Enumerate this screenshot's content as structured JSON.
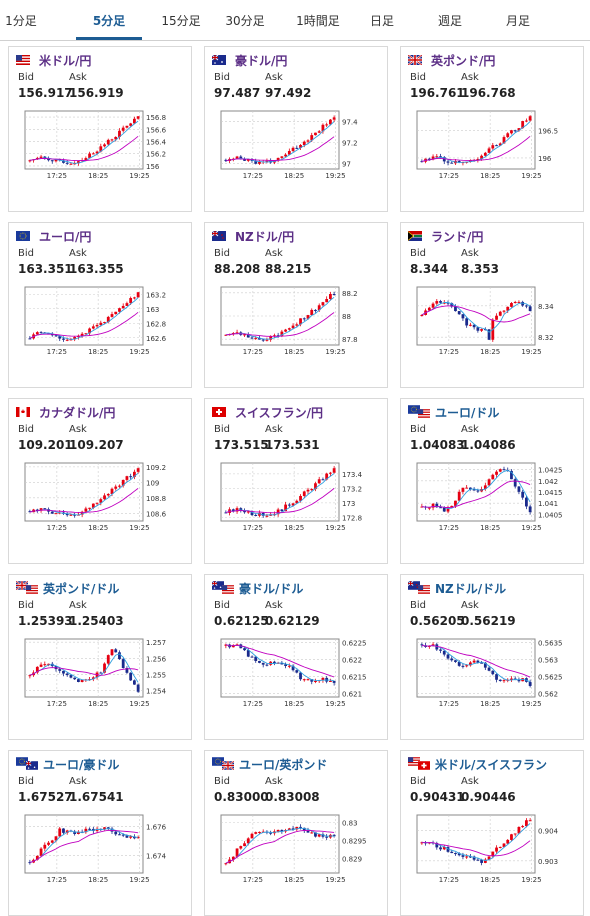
{
  "tabs": [
    {
      "label": "1分足",
      "active": false
    },
    {
      "label": "5分足",
      "active": true
    },
    {
      "label": "15分足",
      "active": false
    },
    {
      "label": "30分足",
      "active": false
    },
    {
      "label": "1時間足",
      "active": false
    },
    {
      "label": "日足",
      "active": false
    },
    {
      "label": "週足",
      "active": false
    },
    {
      "label": "月足",
      "active": false
    }
  ],
  "labels": {
    "bid": "Bid",
    "ask": "Ask"
  },
  "colors": {
    "up": "#e60012",
    "down": "#1a2a8c",
    "ma_fast": "#30a0e0",
    "ma_slow": "#c000c0",
    "title_purple": "#5c2f86",
    "title_blue": "#1d5c93"
  },
  "cards": [
    {
      "title": "米ドル/円",
      "flag": "us",
      "bid": "156.917",
      "ask": "156.919",
      "chart": {
        "type": "candlestick",
        "x_ticks": [
          "17:25",
          "18:25",
          "19:25"
        ],
        "y_ticks": [
          "156",
          "156.2",
          "156.4",
          "156.6",
          "156.8"
        ],
        "ylim": [
          155.95,
          156.9
        ],
        "trend": "up-late"
      }
    },
    {
      "title": "豪ドル/円",
      "flag": "au",
      "bid": "97.487",
      "ask": "97.492",
      "chart": {
        "type": "candlestick",
        "x_ticks": [
          "17:25",
          "18:25",
          "19:25"
        ],
        "y_ticks": [
          "97",
          "97.2",
          "97.4"
        ],
        "ylim": [
          96.95,
          97.5
        ],
        "trend": "up-late"
      }
    },
    {
      "title": "英ポンド/円",
      "flag": "gb",
      "bid": "196.761",
      "ask": "196.768",
      "chart": {
        "type": "candlestick",
        "x_ticks": [
          "17:25",
          "18:25",
          "19:25"
        ],
        "y_ticks": [
          "196",
          "196.5"
        ],
        "ylim": [
          195.8,
          196.85
        ],
        "trend": "up-late"
      }
    },
    {
      "title": "ユーロ/円",
      "flag": "eu",
      "bid": "163.351",
      "ask": "163.355",
      "chart": {
        "type": "candlestick",
        "x_ticks": [
          "17:25",
          "18:25",
          "19:25"
        ],
        "y_ticks": [
          "162.6",
          "162.8",
          "163",
          "163.2"
        ],
        "ylim": [
          162.5,
          163.3
        ],
        "trend": "up-late"
      }
    },
    {
      "title": "NZドル/円",
      "flag": "nz",
      "bid": "88.208",
      "ask": "88.215",
      "chart": {
        "type": "candlestick",
        "x_ticks": [
          "17:25",
          "18:25",
          "19:25"
        ],
        "y_ticks": [
          "87.8",
          "88",
          "88.2"
        ],
        "ylim": [
          87.75,
          88.25
        ],
        "trend": "up-late"
      }
    },
    {
      "title": "ランド/円",
      "flag": "za",
      "bid": "8.344",
      "ask": "8.353",
      "chart": {
        "type": "candlestick",
        "x_ticks": [
          "17:25",
          "18:25",
          "19:25"
        ],
        "y_ticks": [
          "8.32",
          "8.34"
        ],
        "ylim": [
          8.315,
          8.352
        ],
        "trend": "flat"
      }
    },
    {
      "title": "カナダドル/円",
      "flag": "ca",
      "bid": "109.201",
      "ask": "109.207",
      "chart": {
        "type": "candlestick",
        "x_ticks": [
          "17:25",
          "18:25",
          "19:25"
        ],
        "y_ticks": [
          "108.6",
          "108.8",
          "109",
          "109.2"
        ],
        "ylim": [
          108.5,
          109.25
        ],
        "trend": "up-late"
      }
    },
    {
      "title": "スイスフラン/円",
      "flag": "ch",
      "bid": "173.515",
      "ask": "173.531",
      "chart": {
        "type": "candlestick",
        "x_ticks": [
          "17:25",
          "18:25",
          "19:25"
        ],
        "y_ticks": [
          "172.8",
          "173",
          "173.2",
          "173.4"
        ],
        "ylim": [
          172.75,
          173.55
        ],
        "trend": "up-late"
      }
    },
    {
      "title": "ユーロ/ドル",
      "flag": "eu-us",
      "bid": "1.04083",
      "ask": "1.04086",
      "chart": {
        "type": "candlestick",
        "x_ticks": [
          "17:25",
          "18:25",
          "19:25"
        ],
        "y_ticks": [
          "1.0405",
          "1.041",
          "1.0415",
          "1.042",
          "1.0425"
        ],
        "ylim": [
          1.0402,
          1.0428
        ],
        "trend": "up-then-drop"
      }
    },
    {
      "title": "英ポンド/ドル",
      "flag": "gb-us",
      "bid": "1.25393",
      "ask": "1.25403",
      "chart": {
        "type": "candlestick",
        "x_ticks": [
          "17:25",
          "18:25",
          "19:25"
        ],
        "y_ticks": [
          "1.254",
          "1.255",
          "1.256",
          "1.257"
        ],
        "ylim": [
          1.2536,
          1.2572
        ],
        "trend": "spike-then-drop"
      }
    },
    {
      "title": "豪ドル/ドル",
      "flag": "au-us",
      "bid": "0.62125",
      "ask": "0.62129",
      "chart": {
        "type": "candlestick",
        "x_ticks": [
          "17:25",
          "18:25",
          "19:25"
        ],
        "y_ticks": [
          "0.621",
          "0.6215",
          "0.622",
          "0.6225"
        ],
        "ylim": [
          0.6209,
          0.6226
        ],
        "trend": "down"
      }
    },
    {
      "title": "NZドル/ドル",
      "flag": "nz-us",
      "bid": "0.56205",
      "ask": "0.56219",
      "chart": {
        "type": "candlestick",
        "x_ticks": [
          "17:25",
          "18:25",
          "19:25"
        ],
        "y_ticks": [
          "0.562",
          "0.5625",
          "0.563",
          "0.5635"
        ],
        "ylim": [
          0.5619,
          0.5636
        ],
        "trend": "down"
      }
    },
    {
      "title": "ユーロ/豪ドル",
      "flag": "eu-au",
      "bid": "1.67527",
      "ask": "1.67541",
      "chart": {
        "type": "candlestick",
        "x_ticks": [
          "17:25",
          "18:25",
          "19:25"
        ],
        "y_ticks": [
          "1.674",
          "1.676"
        ],
        "ylim": [
          1.6728,
          1.6768
        ],
        "trend": "up-early"
      }
    },
    {
      "title": "ユーロ/英ポンド",
      "flag": "eu-gb",
      "bid": "0.83000",
      "ask": "0.83008",
      "chart": {
        "type": "candlestick",
        "x_ticks": [
          "17:25",
          "18:25",
          "19:25"
        ],
        "y_ticks": [
          "0.829",
          "0.8295",
          "0.83"
        ],
        "ylim": [
          0.8286,
          0.8302
        ],
        "trend": "up-early"
      }
    },
    {
      "title": "米ドル/スイスフラン",
      "flag": "us-ch",
      "bid": "0.90431",
      "ask": "0.90446",
      "chart": {
        "type": "candlestick",
        "x_ticks": [
          "17:25",
          "18:25",
          "19:25"
        ],
        "y_ticks": [
          "0.903",
          "0.904"
        ],
        "ylim": [
          0.9026,
          0.9045
        ],
        "trend": "v-shape"
      }
    }
  ]
}
